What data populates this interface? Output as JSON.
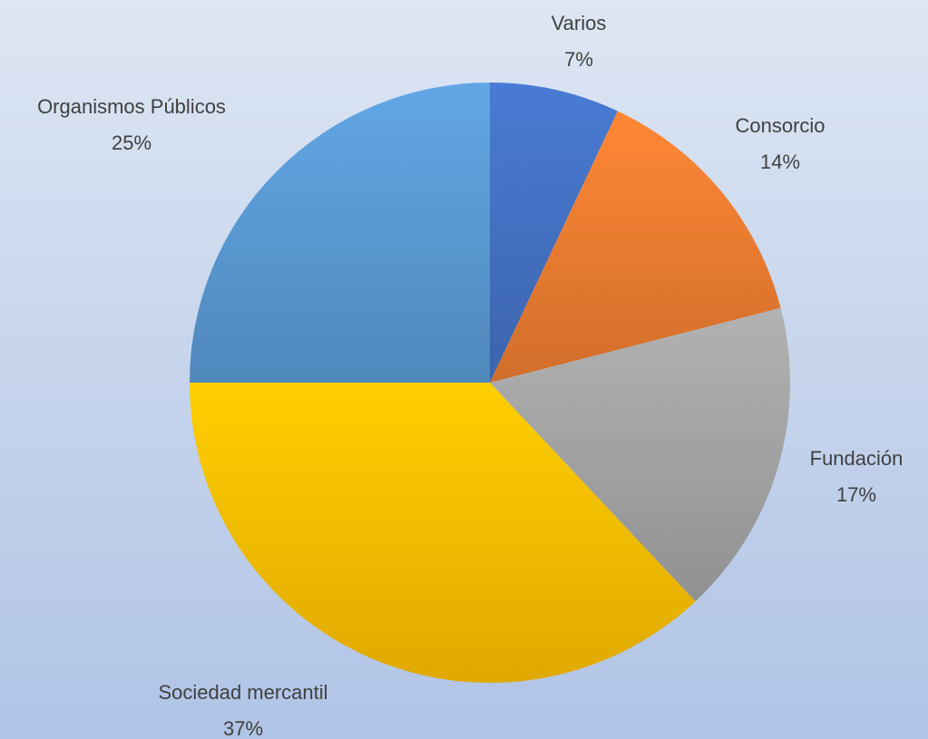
{
  "chart_data": {
    "type": "pie",
    "categories": [
      "Varios",
      "Consorcio",
      "Fundación",
      "Sociedad mercantil",
      "Organismos Públicos"
    ],
    "values": [
      7,
      14,
      17,
      37,
      25
    ],
    "value_labels": [
      "7%",
      "14%",
      "17%",
      "37%",
      "25%"
    ],
    "colors": [
      "#4472c4",
      "#ed7d31",
      "#a5a5a5",
      "#ffc000",
      "#5b9bd5"
    ]
  }
}
